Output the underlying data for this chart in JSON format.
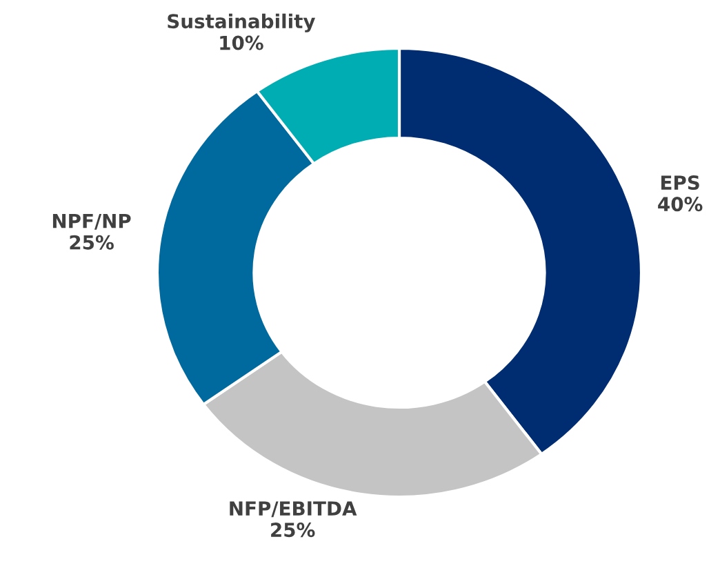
{
  "chart_data": {
    "type": "donut",
    "categories": [
      "EPS",
      "NFP/EBITDA",
      "NPF/NP",
      "Sustainability"
    ],
    "values": [
      40,
      25,
      25,
      10
    ],
    "value_labels": [
      "40%",
      "25%",
      "25%",
      "10%"
    ],
    "colors": [
      "#002d72",
      "#c4c4c4",
      "#006a9e",
      "#00adb2"
    ],
    "legend": false
  }
}
